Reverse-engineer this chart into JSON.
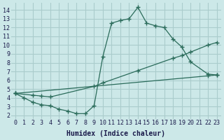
{
  "xlabel": "Humidex (Indice chaleur)",
  "bg_color": "#cce8e8",
  "grid_color": "#aacccc",
  "line_color": "#2a6b5a",
  "xlim": [
    -0.5,
    23.5
  ],
  "ylim": [
    1.6,
    14.8
  ],
  "xticks": [
    0,
    1,
    2,
    3,
    4,
    5,
    6,
    7,
    8,
    9,
    10,
    11,
    12,
    13,
    14,
    15,
    16,
    17,
    18,
    19,
    20,
    21,
    22,
    23
  ],
  "yticks": [
    2,
    3,
    4,
    5,
    6,
    7,
    8,
    9,
    10,
    11,
    12,
    13,
    14
  ],
  "line1_x": [
    0,
    1,
    2,
    3,
    4,
    5,
    6,
    7,
    8,
    9,
    10,
    11,
    12,
    13,
    14,
    15,
    16,
    17,
    18,
    19,
    20,
    22,
    23
  ],
  "line1_y": [
    4.5,
    4.0,
    3.5,
    3.2,
    3.1,
    2.7,
    2.5,
    2.2,
    2.2,
    3.1,
    8.7,
    12.5,
    12.8,
    13.0,
    14.3,
    12.5,
    12.2,
    12.0,
    10.7,
    9.8,
    8.1,
    6.7,
    6.6
  ],
  "line2_x": [
    0,
    2,
    3,
    4,
    9,
    10,
    14,
    18,
    19,
    20,
    22,
    23
  ],
  "line2_y": [
    4.5,
    4.3,
    4.2,
    4.1,
    5.3,
    5.7,
    7.1,
    8.5,
    8.8,
    9.2,
    10.0,
    10.3
  ],
  "line3_x": [
    0,
    22,
    23
  ],
  "line3_y": [
    4.5,
    6.5,
    6.6
  ]
}
